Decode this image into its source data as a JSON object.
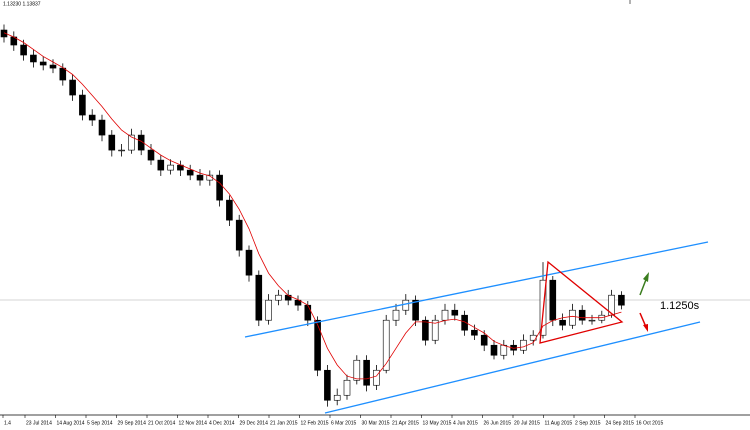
{
  "chart_data": {
    "type": "candlestick",
    "header": "1.13230 1.13837",
    "level_label": "1.1250s",
    "x_labels": [
      "1.4",
      "23 Jul 2014",
      "14 Aug 2014",
      "5 Sep 2014",
      "29 Sep 2014",
      "21 Oct 2014",
      "12 Nov 2014",
      "4 Dec 2014",
      "29 Dec 2014",
      "21 Jan 2015",
      "12 Feb 2015",
      "6 Mar 2015",
      "30 Mar 2015",
      "21 Apr 2015",
      "13 May 2015",
      "4 Jun 2015",
      "26 Jun 2015",
      "20 Jul 2015",
      "11 Aug 2015",
      "2 Sep 2015",
      "24 Sep 2015",
      "16 Oct 2015"
    ],
    "ylim": [
      1.04,
      1.335
    ],
    "open": [
      1.317,
      1.312,
      1.3062,
      1.299,
      1.294,
      1.2918,
      1.2896,
      1.281,
      1.2702,
      1.2558,
      1.2522,
      1.2414,
      1.2306,
      1.2306,
      1.2414,
      1.2306,
      1.2234,
      1.2162,
      1.2198,
      1.2162,
      1.2126,
      1.209,
      1.2126,
      1.1946,
      1.1802,
      1.1586,
      1.1406,
      1.1082,
      1.1226,
      1.1262,
      1.1226,
      1.119,
      1.1082,
      1.0722,
      1.0506,
      1.0542,
      1.065,
      1.0794,
      1.0614,
      1.0722,
      1.1082,
      1.1154,
      1.1226,
      1.1082,
      1.0938,
      1.1082,
      1.1154,
      1.1118,
      1.101,
      1.0974,
      1.0902,
      1.083,
      1.0902,
      1.0866,
      1.0938,
      1.0974,
      1.137,
      1.1082,
      1.1046,
      1.1154,
      1.1082,
      1.1082,
      1.1118,
      1.1262
    ],
    "high": [
      1.321,
      1.316,
      1.31,
      1.303,
      1.298,
      1.296,
      1.293,
      1.285,
      1.274,
      1.26,
      1.256,
      1.245,
      1.235,
      1.246,
      1.245,
      1.235,
      1.227,
      1.224,
      1.223,
      1.22,
      1.217,
      1.216,
      1.216,
      1.198,
      1.184,
      1.162,
      1.144,
      1.127,
      1.13,
      1.13,
      1.126,
      1.122,
      1.111,
      1.076,
      1.059,
      1.069,
      1.083,
      1.083,
      1.076,
      1.112,
      1.12,
      1.127,
      1.126,
      1.111,
      1.112,
      1.12,
      1.12,
      1.115,
      1.105,
      1.101,
      1.094,
      1.094,
      1.094,
      1.098,
      1.101,
      1.15,
      1.14,
      1.113,
      1.12,
      1.119,
      1.112,
      1.115,
      1.13,
      1.129
    ],
    "low": [
      1.308,
      1.302,
      1.295,
      1.29,
      1.288,
      1.286,
      1.277,
      1.266,
      1.252,
      1.248,
      1.237,
      1.226,
      1.226,
      1.228,
      1.227,
      1.22,
      1.212,
      1.213,
      1.212,
      1.209,
      1.205,
      1.205,
      1.19,
      1.176,
      1.154,
      1.136,
      1.104,
      1.105,
      1.119,
      1.119,
      1.115,
      1.104,
      1.068,
      1.046,
      1.047,
      1.051,
      1.062,
      1.057,
      1.058,
      1.07,
      1.104,
      1.112,
      1.104,
      1.09,
      1.091,
      1.105,
      1.108,
      1.097,
      1.094,
      1.086,
      1.08,
      1.08,
      1.083,
      1.084,
      1.09,
      1.095,
      1.104,
      1.101,
      1.102,
      1.105,
      1.105,
      1.106,
      1.11,
      1.116
    ],
    "close": [
      1.312,
      1.3062,
      1.299,
      1.294,
      1.2918,
      1.2896,
      1.281,
      1.2702,
      1.2558,
      1.2522,
      1.2414,
      1.2306,
      1.2306,
      1.2414,
      1.2306,
      1.2234,
      1.2162,
      1.2198,
      1.2162,
      1.2126,
      1.209,
      1.2126,
      1.1946,
      1.1802,
      1.1586,
      1.1406,
      1.1082,
      1.1226,
      1.1262,
      1.1226,
      1.119,
      1.1082,
      1.0722,
      1.0506,
      1.0542,
      1.065,
      1.0794,
      1.0614,
      1.0722,
      1.1082,
      1.1154,
      1.1226,
      1.1082,
      1.0938,
      1.1082,
      1.1154,
      1.1118,
      1.101,
      1.0974,
      1.0902,
      1.083,
      1.0902,
      1.0866,
      1.0938,
      1.0974,
      1.137,
      1.1082,
      1.1046,
      1.1154,
      1.1082,
      1.1082,
      1.1118,
      1.1262,
      1.119
    ],
    "ma": {
      "color": "#e00000",
      "values": [
        1.315,
        1.312,
        1.308,
        1.303,
        1.298,
        1.294,
        1.29,
        1.285,
        1.278,
        1.27,
        1.262,
        1.253,
        1.245,
        1.24,
        1.237,
        1.232,
        1.227,
        1.223,
        1.22,
        1.217,
        1.214,
        1.212,
        1.207,
        1.199,
        1.188,
        1.174,
        1.156,
        1.142,
        1.133,
        1.126,
        1.123,
        1.119,
        1.105,
        1.088,
        1.076,
        1.068,
        1.066,
        1.066,
        1.068,
        1.077,
        1.088,
        1.099,
        1.107,
        1.107,
        1.106,
        1.108,
        1.109,
        1.107,
        1.103,
        1.099,
        1.093,
        1.09,
        1.088,
        1.089,
        1.092,
        1.104,
        1.108,
        1.11,
        1.111,
        1.11,
        1.11,
        1.11,
        1.112,
        1.114
      ]
    },
    "up_color": "#ffffff",
    "down_color": "#000000"
  }
}
